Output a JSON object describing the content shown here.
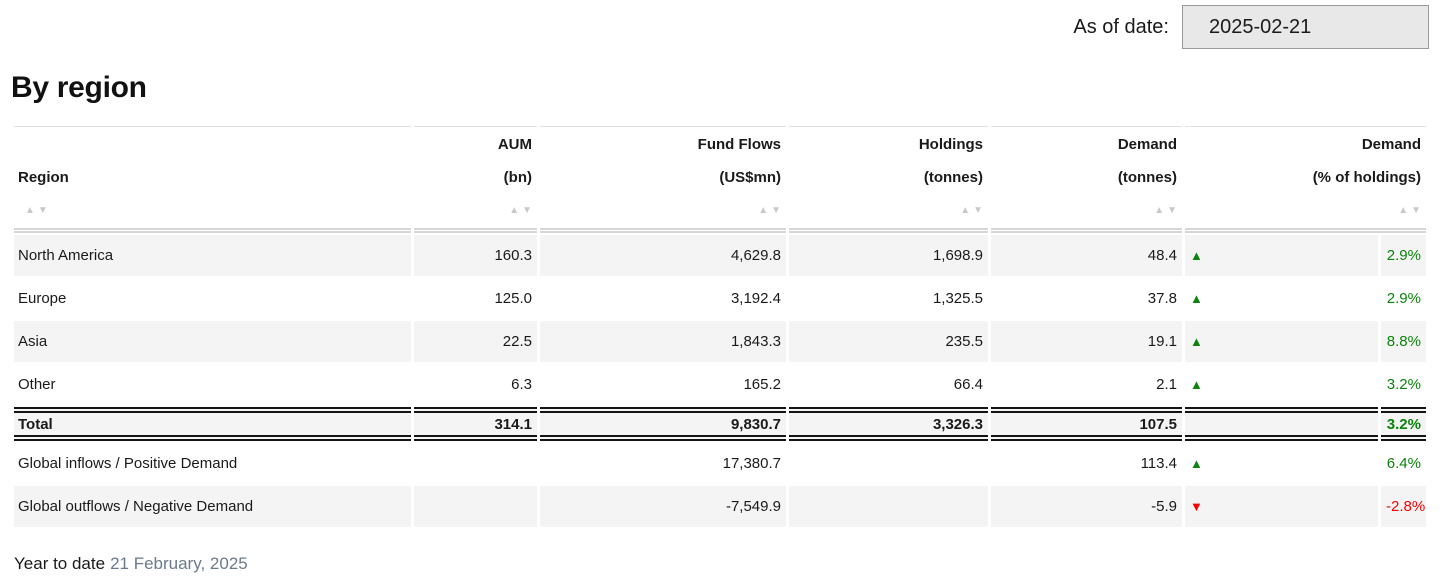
{
  "as_of": {
    "label": "As of date:",
    "value": "2025-02-21"
  },
  "title": "By region",
  "icons": {
    "sort_asc": "▲",
    "sort_desc": "▼",
    "up": "▲",
    "down": "▼"
  },
  "colors": {
    "positive": "#0a840a",
    "negative": "#f80000"
  },
  "table": {
    "columns": [
      {
        "line1": "",
        "line2": "Region"
      },
      {
        "line1": "AUM",
        "line2": "(bn)"
      },
      {
        "line1": "Fund Flows",
        "line2": "(US$mn)"
      },
      {
        "line1": "Holdings",
        "line2": "(tonnes)"
      },
      {
        "line1": "Demand",
        "line2": "(tonnes)"
      },
      {
        "line1": "Demand",
        "line2": "(% of holdings)"
      }
    ],
    "rows": [
      {
        "region": "North America",
        "aum": "160.3",
        "flows": "4,629.8",
        "holdings": "1,698.9",
        "demand": "48.4",
        "indicator": "up",
        "pct": "2.9%"
      },
      {
        "region": "Europe",
        "aum": "125.0",
        "flows": "3,192.4",
        "holdings": "1,325.5",
        "demand": "37.8",
        "indicator": "up",
        "pct": "2.9%"
      },
      {
        "region": "Asia",
        "aum": "22.5",
        "flows": "1,843.3",
        "holdings": "235.5",
        "demand": "19.1",
        "indicator": "up",
        "pct": "8.8%"
      },
      {
        "region": "Other",
        "aum": "6.3",
        "flows": "165.2",
        "holdings": "66.4",
        "demand": "2.1",
        "indicator": "up",
        "pct": "3.2%"
      }
    ],
    "total": {
      "region": "Total",
      "aum": "314.1",
      "flows": "9,830.7",
      "holdings": "3,326.3",
      "demand": "107.5",
      "indicator": "",
      "pct": "3.2%"
    },
    "flow_rows": [
      {
        "region": "Global inflows / Positive Demand",
        "aum": "",
        "flows": "17,380.7",
        "holdings": "",
        "demand": "113.4",
        "indicator": "up",
        "pct": "6.4%"
      },
      {
        "region": "Global outflows / Negative Demand",
        "aum": "",
        "flows": "-7,549.9",
        "holdings": "",
        "demand": "-5.9",
        "indicator": "down",
        "pct": "-2.8%"
      }
    ]
  },
  "footer": {
    "label": "Year to date",
    "date": "21 February, 2025"
  }
}
